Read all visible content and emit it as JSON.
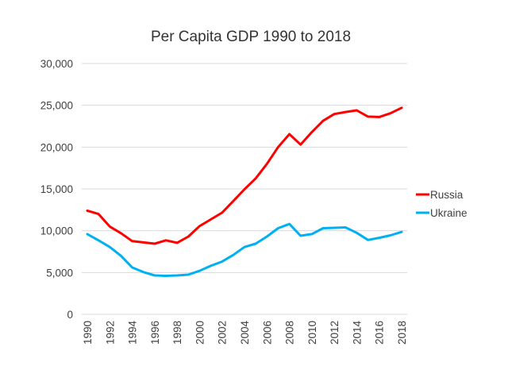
{
  "chart_data": {
    "type": "line",
    "title": "Per Capita GDP 1990 to 2018",
    "xlabel": "",
    "ylabel": "",
    "ylim": [
      0,
      30000
    ],
    "yticks": [
      0,
      5000,
      10000,
      15000,
      20000,
      25000,
      30000
    ],
    "ytick_labels": [
      "0",
      "5,000",
      "10,000",
      "15,000",
      "20,000",
      "25,000",
      "30,000"
    ],
    "x": [
      1990,
      1991,
      1992,
      1993,
      1994,
      1995,
      1996,
      1997,
      1998,
      1999,
      2000,
      2001,
      2002,
      2003,
      2004,
      2005,
      2006,
      2007,
      2008,
      2009,
      2010,
      2011,
      2012,
      2013,
      2014,
      2015,
      2016,
      2017,
      2018
    ],
    "xtick_labels": [
      "1990",
      "1992",
      "1994",
      "1996",
      "1998",
      "2000",
      "2002",
      "2004",
      "2006",
      "2008",
      "2010",
      "2012",
      "2014",
      "2016",
      "2018"
    ],
    "grid": true,
    "legend_position": "right",
    "series": [
      {
        "name": "Russia",
        "color": "#ff0000",
        "values": [
          12400,
          12000,
          10500,
          9700,
          8750,
          8600,
          8450,
          8850,
          8550,
          9300,
          10550,
          11350,
          12150,
          13550,
          14950,
          16250,
          18000,
          20000,
          21550,
          20300,
          21800,
          23150,
          23950,
          24200,
          24400,
          23650,
          23600,
          24050,
          24700
        ]
      },
      {
        "name": "Ukraine",
        "color": "#00b0f0",
        "values": [
          9600,
          8850,
          8050,
          7000,
          5600,
          5050,
          4650,
          4600,
          4650,
          4750,
          5200,
          5800,
          6300,
          7100,
          8050,
          8450,
          9300,
          10300,
          10800,
          9400,
          9600,
          10300,
          10350,
          10400,
          9750,
          8900,
          9150,
          9450,
          9850
        ]
      }
    ]
  }
}
